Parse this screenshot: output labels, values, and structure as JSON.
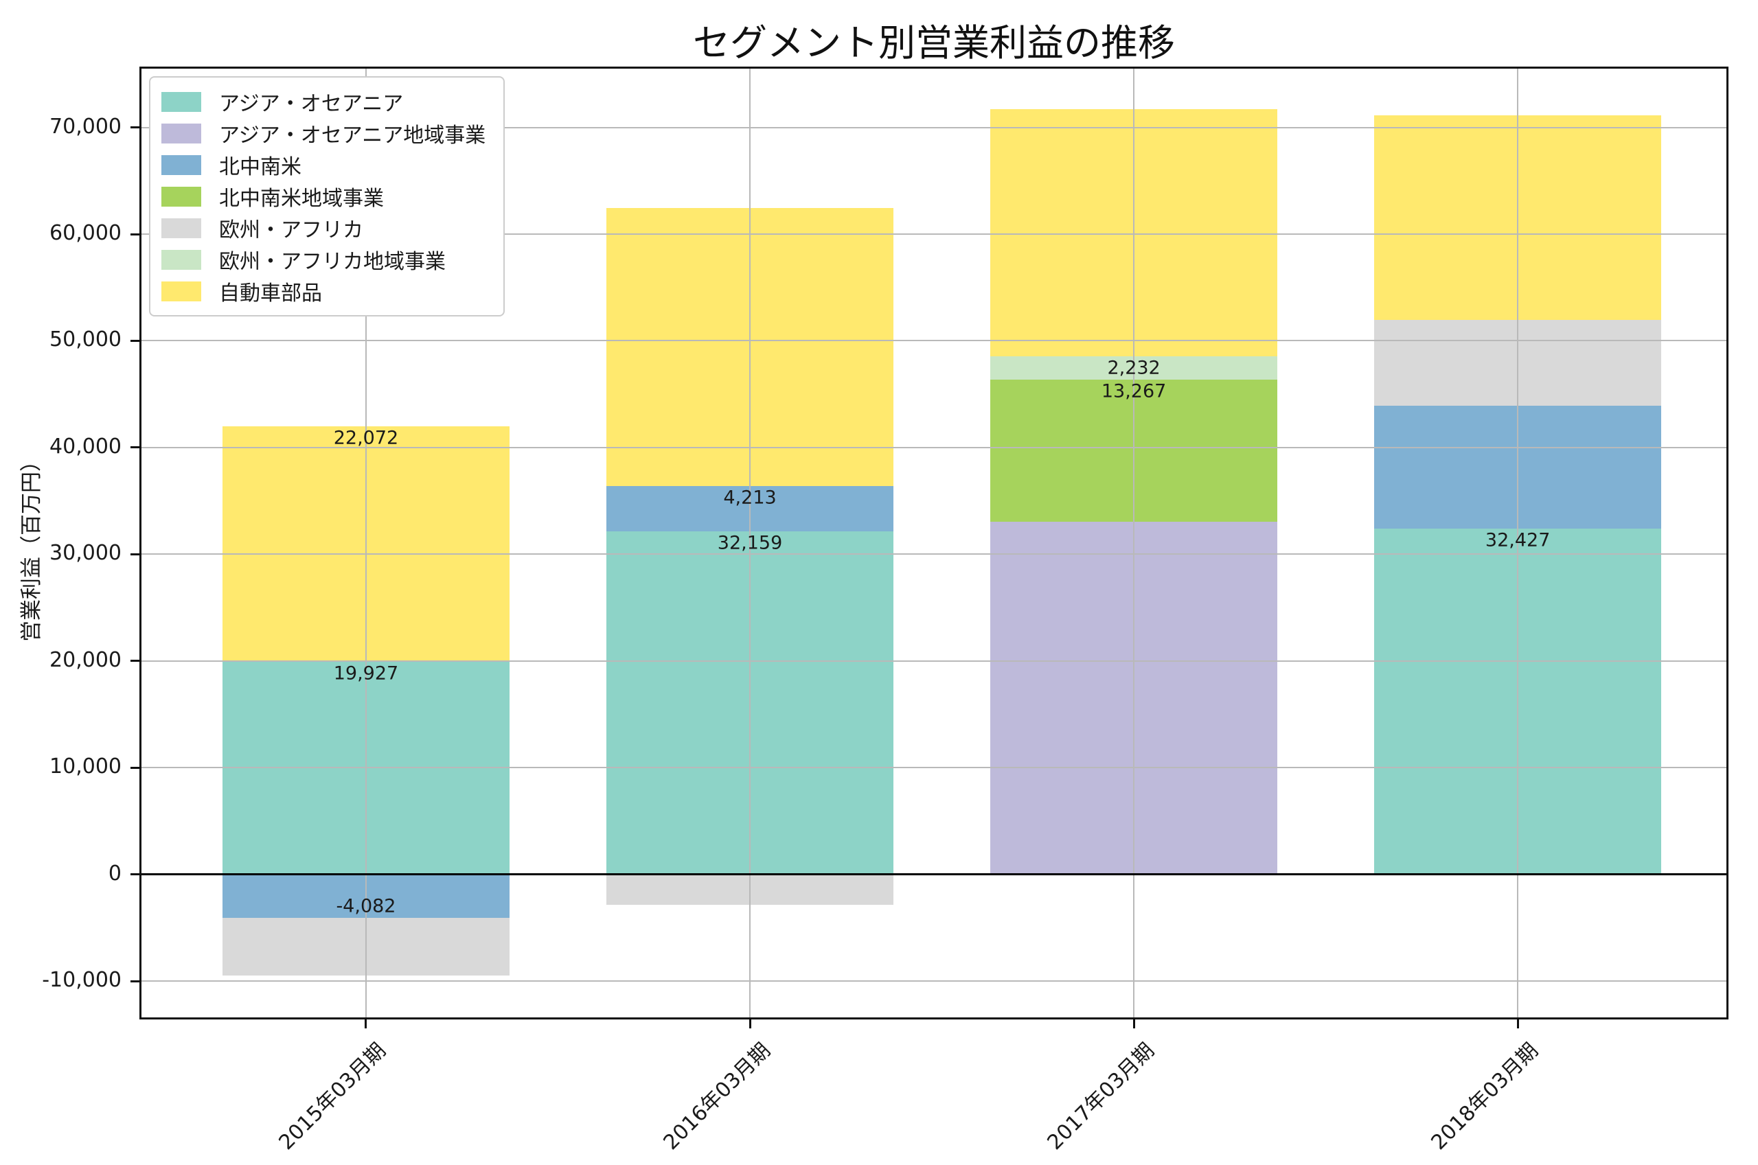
{
  "chart_data": {
    "type": "bar",
    "stacked": true,
    "title": "セグメント別営業利益の推移",
    "xlabel": "",
    "ylabel": "営業利益（百万円）",
    "categories": [
      "2015年03月期",
      "2016年03月期",
      "2017年03月期",
      "2018年03月期"
    ],
    "series": [
      {
        "name": "アジア・オセアニア",
        "color": "#8dd3c7",
        "values": [
          19927,
          32159,
          0,
          32427
        ]
      },
      {
        "name": "アジア・オセアニア地域事業",
        "color": "#bebada",
        "values": [
          0,
          0,
          33065,
          0
        ]
      },
      {
        "name": "北中南米",
        "color": "#80b1d3",
        "values": [
          -4082,
          4213,
          0,
          11473
        ]
      },
      {
        "name": "北中南米地域事業",
        "color": "#a6d35c",
        "values": [
          0,
          0,
          13267,
          0
        ]
      },
      {
        "name": "欧州・アフリカ",
        "color": "#d9d9d9",
        "values": [
          -5390,
          -2885,
          0,
          8050
        ]
      },
      {
        "name": "欧州・アフリカ地域事業",
        "color": "#c9e6c5",
        "values": [
          0,
          0,
          2232,
          0
        ]
      },
      {
        "name": "自動車部品",
        "color": "#ffe96e",
        "values": [
          22072,
          26100,
          23153,
          19210
        ]
      }
    ],
    "data_labels": [
      {
        "category": 0,
        "series": 6,
        "text": "22,072"
      },
      {
        "category": 0,
        "series": 0,
        "text": "19,927"
      },
      {
        "category": 0,
        "series": 2,
        "text": "-4,082"
      },
      {
        "category": 1,
        "series": 2,
        "text": "4,213"
      },
      {
        "category": 1,
        "series": 0,
        "text": "32,159"
      },
      {
        "category": 2,
        "series": 5,
        "text": "2,232"
      },
      {
        "category": 2,
        "series": 3,
        "text": "13,267"
      },
      {
        "category": 3,
        "series": 0,
        "text": "32,427"
      }
    ],
    "yticks": [
      -10000,
      0,
      10000,
      20000,
      30000,
      40000,
      50000,
      60000,
      70000
    ],
    "ylim": [
      -13600,
      75700
    ],
    "grid": true,
    "grid_above_bars": true,
    "zero_line_color": "#000000",
    "legend_position": "upper left"
  }
}
